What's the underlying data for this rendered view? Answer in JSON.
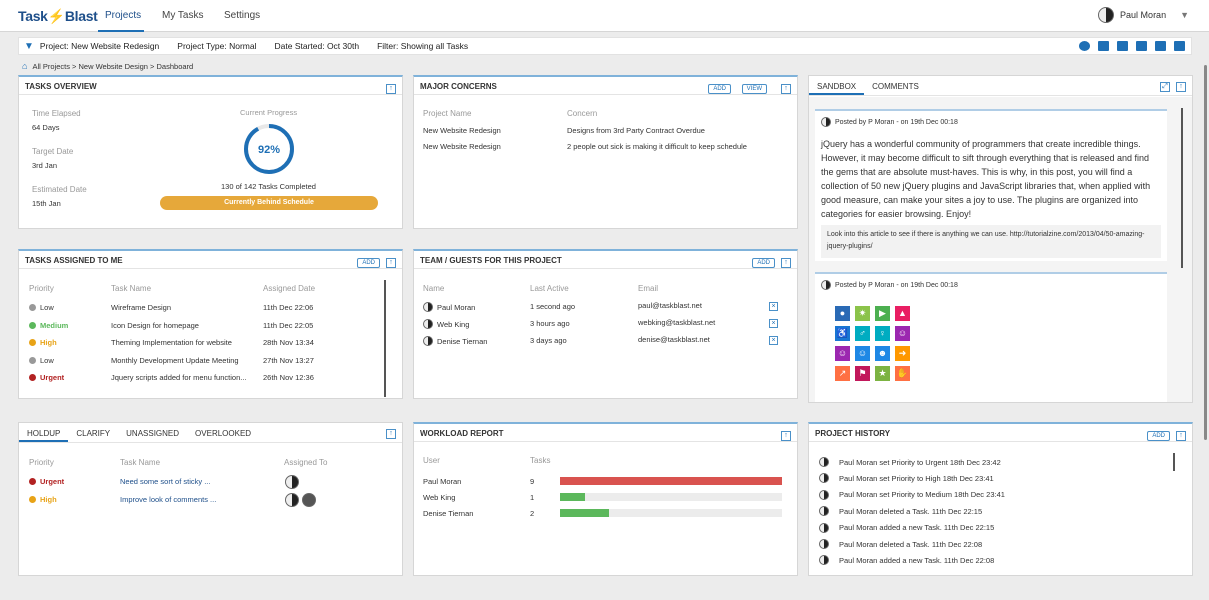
{
  "logo": {
    "part1": "Task",
    "part2": "Blast"
  },
  "nav": {
    "tabs": [
      "Projects",
      "My Tasks",
      "Settings"
    ]
  },
  "user": {
    "name": "Paul Moran"
  },
  "filter": {
    "project": "Project:  New Website Redesign",
    "type": "Project Type: Normal",
    "date": "Date Started:  Oct 30th",
    "filter": "Filter: Showing all Tasks"
  },
  "breadcrumb": "All Projects > New Website Design > Dashboard",
  "tasks_overview": {
    "title": "TASKS OVERVIEW",
    "time_elapsed_label": "Time Elapsed",
    "time_elapsed": "64 Days",
    "target_label": "Target Date",
    "target": "3rd Jan",
    "estimated_label": "Estimated Date",
    "estimated": "15th Jan",
    "progress_label": "Current Progress",
    "progress_percent": 92,
    "progress_text": "92%",
    "completed": "130 of 142 Tasks Completed",
    "status": "Currently Behind Schedule"
  },
  "major_concerns": {
    "title": "MAJOR CONCERNS",
    "add": "ADD",
    "view": "VIEW",
    "col1": "Project Name",
    "col2": "Concern",
    "rows": [
      {
        "project": "New Website Redesign",
        "concern": "Designs from 3rd Party Contract Overdue"
      },
      {
        "project": "New Website Redesign",
        "concern": "2 people out sick is making it difficult to keep schedule"
      }
    ]
  },
  "sandbox": {
    "tab1": "SANDBOX",
    "tab2": "COMMENTS",
    "post1_meta": "Posted by P Moran - on 19th Dec 00:18",
    "post1_body": "jQuery has a wonderful community of programmers that create incredible things. However, it may become difficult to sift through everything that is released and find the gems that are absolute must-haves. This is why, in this post, you will find a collection of 50 new jQuery plugins and JavaScript libraries that, when applied with good measure, can make your sites a joy to use. The plugins are organized into categories for easier browsing. Enjoy!",
    "post1_note": "Look into this article to see if there is anything we can use. http://tutorialzine.com/2013/04/50-amazing-jquery-plugins/",
    "post2_meta": "Posted by P Moran - on 19th Dec 00:18"
  },
  "tasks_assigned": {
    "title": "TASKS ASSIGNED TO ME",
    "add": "ADD",
    "col1": "Priority",
    "col2": "Task Name",
    "col3": "Assigned Date",
    "rows": [
      {
        "priority": "Low",
        "color": "#999999",
        "task": "Wireframe Design",
        "date": "11th Dec 22:06"
      },
      {
        "priority": "Medium",
        "color": "#5cb85c",
        "task": "Icon Design for homepage",
        "date": "11th Dec 22:05"
      },
      {
        "priority": "High",
        "color": "#e8a317",
        "task": "Theming Implementation for website",
        "date": "28th Nov 13:34"
      },
      {
        "priority": "Low",
        "color": "#999999",
        "task": "Monthly Development Update Meeting",
        "date": "27th Nov 13:27"
      },
      {
        "priority": "Urgent",
        "color": "#b22222",
        "task": "Jquery scripts added for menu function...",
        "date": "26th Nov 12:36"
      }
    ]
  },
  "team": {
    "title": "TEAM / GUESTS FOR THIS PROJECT",
    "add": "ADD",
    "col1": "Name",
    "col2": "Last Active",
    "col3": "Email",
    "rows": [
      {
        "name": "Paul Moran",
        "active": "1 second ago",
        "email": "paul@taskblast.net"
      },
      {
        "name": "Web King",
        "active": "3 hours ago",
        "email": "webking@taskblast.net"
      },
      {
        "name": "Denise Tiernan",
        "active": "3 days ago",
        "email": "denise@taskblast.net"
      }
    ]
  },
  "holdup": {
    "tabs": [
      "HOLDUP",
      "CLARIFY",
      "UNASSIGNED",
      "OVERLOOKED"
    ],
    "col1": "Priority",
    "col2": "Task Name",
    "col3": "Assigned To",
    "rows": [
      {
        "priority": "Urgent",
        "color": "#b22222",
        "task": "Need some sort of sticky ..."
      },
      {
        "priority": "High",
        "color": "#e8a317",
        "task": "Improve look of comments ..."
      }
    ]
  },
  "workload": {
    "title": "WORKLOAD REPORT",
    "col1": "User",
    "col2": "Tasks",
    "max": 9,
    "rows": [
      {
        "user": "Paul Moran",
        "tasks": 9,
        "label": "9",
        "color": "#d9534f"
      },
      {
        "user": "Web King",
        "tasks": 1,
        "label": "1",
        "color": "#5cb85c"
      },
      {
        "user": "Denise Tiernan",
        "tasks": 2,
        "label": "2",
        "color": "#5cb85c"
      }
    ]
  },
  "history": {
    "title": "PROJECT HISTORY",
    "add": "ADD",
    "rows": [
      "Paul Moran set Priority to Urgent 18th Dec 23:42",
      "Paul Moran set Priority to High 18th Dec 23:41",
      "Paul Moran set Priority to Medium 18th Dec 23:41",
      "Paul Moran deleted a Task. 11th Dec 22:15",
      "Paul Moran added a new Task. 11th Dec 22:15",
      "Paul Moran deleted a Task. 11th Dec 22:08",
      "Paul Moran added a new Task. 11th Dec 22:08"
    ]
  },
  "colors": {
    "accent": "#1e6fb5",
    "status_bar": "#e6a83a"
  }
}
